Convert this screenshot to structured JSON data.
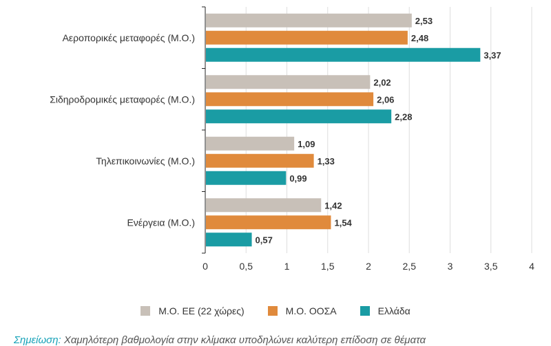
{
  "chart_data": {
    "type": "bar",
    "orientation": "horizontal",
    "categories": [
      "Αεροπορικές μεταφορές (Μ.Ο.)",
      "Σιδηροδρομικές μεταφορές (Μ.Ο.)",
      "Τηλεπικοινωνίες (Μ.Ο.)",
      "Ενέργεια (Μ.Ο.)"
    ],
    "series": [
      {
        "name": "Μ.Ο. ΕΕ (22 χώρες)",
        "color": "#c8c0b8",
        "values": [
          2.53,
          2.02,
          1.09,
          1.42
        ],
        "labels": [
          "2,53",
          "2,02",
          "1,09",
          "1,42"
        ]
      },
      {
        "name": "Μ.Ο. ΟΟΣΑ",
        "color": "#e08a3c",
        "values": [
          2.48,
          2.06,
          1.33,
          1.54
        ],
        "labels": [
          "2,48",
          "2,06",
          "1,33",
          "1,54"
        ]
      },
      {
        "name": "Ελλάδα",
        "color": "#1a9ca4",
        "values": [
          3.37,
          2.28,
          0.99,
          0.57
        ],
        "labels": [
          "3,37",
          "2,28",
          "0,99",
          "0,57"
        ]
      }
    ],
    "xlim": [
      0,
      4
    ],
    "xticks": [
      0,
      0.5,
      1,
      1.5,
      2,
      2.5,
      3,
      3.5,
      4
    ],
    "xtick_labels": [
      "0",
      "0,5",
      "1",
      "1,5",
      "2",
      "2,5",
      "3",
      "3,5",
      "4"
    ],
    "title": "",
    "xlabel": "",
    "ylabel": "",
    "grid": "vertical",
    "legend_position": "bottom"
  },
  "note": {
    "label": "Σημείωση:",
    "text": " Χαμηλότερη βαθμολογία στην κλίμακα υποδηλώνει καλύτερη επίδοση σε θέματα"
  }
}
